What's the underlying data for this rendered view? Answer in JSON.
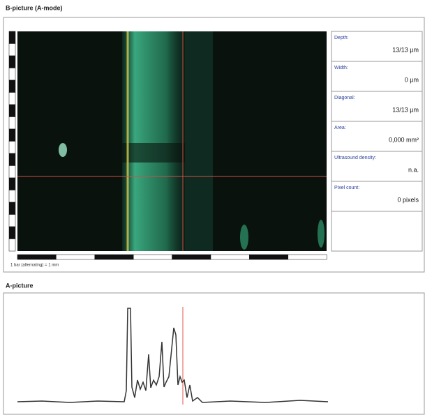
{
  "b_picture": {
    "title": "B-picture (A-mode)",
    "scale_caption": "1 bar (alternating) = 1 mm",
    "measurements": [
      {
        "label": "Depth:",
        "value": "13/13 µm"
      },
      {
        "label": "Width:",
        "value": "0 µm"
      },
      {
        "label": "Diagonal:",
        "value": "13/13 µm"
      },
      {
        "label": "Area:",
        "value": "0,000 mm²"
      },
      {
        "label": "Ultrasound density:",
        "value": "n.a."
      },
      {
        "label": "Pixel count:",
        "value": "0 pixels"
      }
    ]
  },
  "a_picture": {
    "title": "A-picture"
  }
}
